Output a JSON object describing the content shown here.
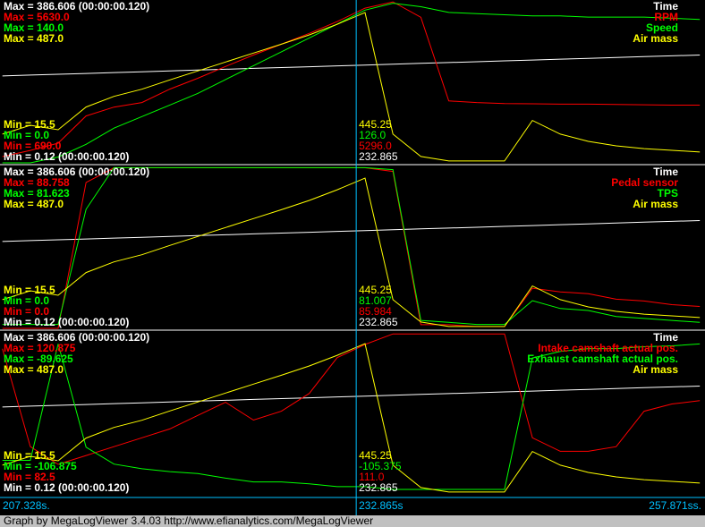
{
  "x": [
    207.5,
    209.5,
    211.5,
    213.5,
    215.5,
    217.5,
    219.5,
    221.5,
    223.5,
    225.5,
    227.5,
    229.5,
    231.5,
    233.5,
    235.5,
    237.5,
    239.5,
    241.5,
    243.5,
    245.5,
    247.5,
    249.5,
    251.5,
    253.5,
    255.5,
    257.5
  ],
  "panels": [
    {
      "traces": [
        {
          "name": "Time",
          "color": "#ffffff",
          "max": {
            "value": 386.606,
            "label": "Max = 386.606 (00:00:00.120)"
          },
          "min": {
            "value": 0.12,
            "label": "Min = 0.12 (00:00:00.120)"
          },
          "cursor": "232.865"
        },
        {
          "name": "RPM",
          "color": "#ff0000",
          "max": {
            "value": 5630,
            "label": "Max = 5630.0"
          },
          "min": {
            "value": 690,
            "label": "Min = 690.0"
          },
          "cursor": "5296.0",
          "values": [
            880,
            1070,
            1290,
            2120,
            2390,
            2530,
            2940,
            3270,
            3630,
            3980,
            4310,
            4640,
            5000,
            5410,
            5600,
            5130,
            2580,
            2530,
            2500,
            2490,
            2480,
            2480,
            2470,
            2460,
            2450,
            2450
          ]
        },
        {
          "name": "Speed",
          "color": "#00ff00",
          "max": {
            "value": 140,
            "label": "Max = 140.0"
          },
          "min": {
            "value": 0,
            "label": "Min = 0.0"
          },
          "cursor": "126.0",
          "values": [
            0,
            0,
            5,
            16,
            30,
            40,
            50,
            60,
            72,
            84,
            96,
            108,
            120,
            132,
            138,
            135,
            130,
            129,
            128,
            127,
            127,
            126,
            126,
            126,
            125,
            124
          ]
        },
        {
          "name": "Air mass",
          "color": "#ffff00",
          "max": {
            "value": 487,
            "label": "Max = 487.0"
          },
          "min": {
            "value": 15.5,
            "label": "Min = 15.5"
          },
          "cursor": "445.25",
          "values": [
            99,
            125,
            112,
            178,
            209,
            230,
            257,
            283,
            309,
            335,
            361,
            388,
            419,
            453,
            99,
            34,
            21,
            21,
            21,
            139,
            99,
            78,
            65,
            57,
            52,
            47
          ]
        }
      ]
    },
    {
      "traces": [
        {
          "name": "Time",
          "color": "#ffffff",
          "max": {
            "value": 386.606,
            "label": "Max = 386.606 (00:00:00.120)"
          },
          "min": {
            "value": 0.12,
            "label": "Min = 0.12 (00:00:00.120)"
          },
          "cursor": "232.865"
        },
        {
          "name": "Pedal sensor",
          "color": "#ff0000",
          "max": {
            "value": 88.758,
            "label": "Max = 88.758"
          },
          "min": {
            "value": 0,
            "label": "Min = 0.0"
          },
          "cursor": "85.984",
          "values": [
            0,
            0,
            0,
            80,
            88,
            88,
            88,
            88,
            88,
            88,
            88,
            88,
            88,
            88,
            86,
            2,
            2,
            1,
            1,
            22,
            20,
            19,
            16,
            15,
            13,
            12
          ]
        },
        {
          "name": "TPS",
          "color": "#00ff00",
          "max": {
            "value": 81.623,
            "label": "Max = 81.623"
          },
          "min": {
            "value": 0,
            "label": "Min = 0.0"
          },
          "cursor": "81.007",
          "values": [
            2,
            2,
            2,
            60,
            81,
            81,
            81,
            81,
            81,
            81,
            81,
            81,
            81,
            81,
            80,
            4,
            3,
            2,
            2,
            14,
            10,
            9,
            6,
            5,
            4,
            3
          ]
        },
        {
          "name": "Air mass",
          "color": "#ffff00",
          "max": {
            "value": 487,
            "label": "Max = 487.0"
          },
          "min": {
            "value": 15.5,
            "label": "Min = 15.5"
          },
          "cursor": "445.25",
          "values": [
            99,
            125,
            112,
            178,
            209,
            230,
            257,
            283,
            309,
            335,
            361,
            388,
            419,
            453,
            99,
            34,
            21,
            21,
            21,
            139,
            99,
            78,
            65,
            57,
            52,
            47
          ]
        }
      ]
    },
    {
      "traces": [
        {
          "name": "Time",
          "color": "#ffffff",
          "max": {
            "value": 386.606,
            "label": "Max = 386.606 (00:00:00.120)"
          },
          "min": {
            "value": 0.12,
            "label": "Min = 0.12 (00:00:00.120)"
          },
          "cursor": "232.865"
        },
        {
          "name": "Intake camshaft actual pos.",
          "color": "#ff0000",
          "max": {
            "value": 120.875,
            "label": "Max = 120.875"
          },
          "min": {
            "value": 82.5,
            "label": "Min = 82.5"
          },
          "cursor": "111.0",
          "values": [
            116.9,
            93.7,
            89.5,
            91.6,
            93.7,
            95.8,
            97.9,
            101.1,
            104.2,
            100.0,
            102.1,
            106.3,
            114.8,
            117.9,
            120.4,
            120.4,
            120.4,
            120.4,
            120.4,
            95.8,
            92.6,
            92.6,
            93.7,
            102.1,
            103.8,
            104.6
          ]
        },
        {
          "name": "Exhaust camshaft actual pos.",
          "color": "#00ff00",
          "max": {
            "value": -89.625,
            "label": "Max = -89.625"
          },
          "min": {
            "value": -106.875,
            "label": "Min = -106.875"
          },
          "cursor": "-105.375",
          "values": [
            -103.3,
            -103.3,
            -90.9,
            -101.9,
            -103.7,
            -104.2,
            -104.5,
            -104.7,
            -105.2,
            -105.6,
            -105.6,
            -105.8,
            -106.1,
            -106.1,
            -106.4,
            -106.4,
            -106.4,
            -106.4,
            -106.4,
            -92.4,
            -91.7,
            -91.4,
            -91.4,
            -91.2,
            -91.1,
            -90.9
          ]
        },
        {
          "name": "Air mass",
          "color": "#ffff00",
          "max": {
            "value": 487,
            "label": "Max = 487.0"
          },
          "min": {
            "value": 15.5,
            "label": "Min = 15.5"
          },
          "cursor": "445.25",
          "values": [
            99,
            125,
            112,
            178,
            209,
            230,
            257,
            283,
            309,
            335,
            361,
            388,
            419,
            453,
            99,
            34,
            21,
            21,
            21,
            139,
            99,
            78,
            65,
            57,
            52,
            47
          ]
        }
      ]
    }
  ],
  "time_axis": {
    "start": {
      "value": 207.328,
      "label": "207.328s."
    },
    "cursor": {
      "value": 232.865,
      "label": "232.865s"
    },
    "end": {
      "value": 257.871,
      "label": "257.871ss."
    }
  },
  "status": "Graph by MegaLogViewer 3.4.03 http://www.efianalytics.com/MegaLogViewer"
}
